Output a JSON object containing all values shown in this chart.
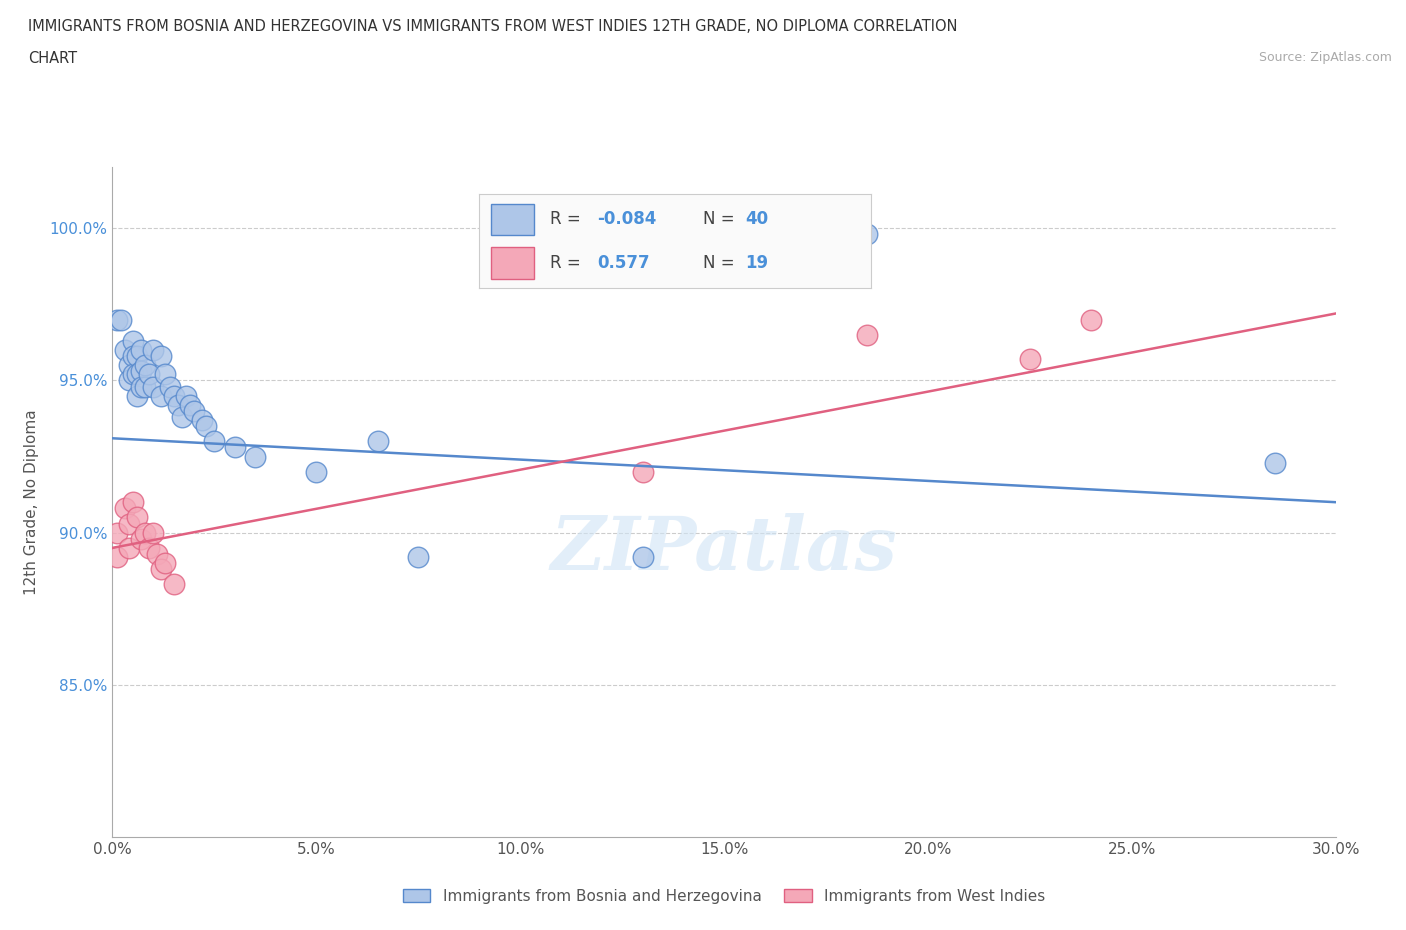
{
  "title_line1": "IMMIGRANTS FROM BOSNIA AND HERZEGOVINA VS IMMIGRANTS FROM WEST INDIES 12TH GRADE, NO DIPLOMA CORRELATION",
  "title_line2": "CHART",
  "source_text": "Source: ZipAtlas.com",
  "ylabel": "12th Grade, No Diploma",
  "xlim": [
    0.0,
    0.3
  ],
  "ylim": [
    0.8,
    1.02
  ],
  "xticklabels": [
    "0.0%",
    "5.0%",
    "10.0%",
    "15.0%",
    "20.0%",
    "25.0%",
    "30.0%"
  ],
  "xticks": [
    0.0,
    0.05,
    0.1,
    0.15,
    0.2,
    0.25,
    0.3
  ],
  "yticks": [
    0.85,
    0.9,
    0.95,
    1.0
  ],
  "yticklabels": [
    "85.0%",
    "90.0%",
    "95.0%",
    "100.0%"
  ],
  "color_blue": "#aec6e8",
  "color_pink": "#f4a8b8",
  "line_blue": "#5588cc",
  "line_pink": "#e06080",
  "R_blue": -0.084,
  "N_blue": 40,
  "R_pink": 0.577,
  "N_pink": 19,
  "legend_label_blue": "Immigrants from Bosnia and Herzegovina",
  "legend_label_pink": "Immigrants from West Indies",
  "watermark": "ZIPatlas",
  "blue_line_y0": 0.931,
  "blue_line_y1": 0.91,
  "pink_line_y0": 0.895,
  "pink_line_y1": 0.972,
  "blue_points": [
    [
      0.001,
      0.97
    ],
    [
      0.002,
      0.97
    ],
    [
      0.003,
      0.96
    ],
    [
      0.004,
      0.955
    ],
    [
      0.004,
      0.95
    ],
    [
      0.005,
      0.963
    ],
    [
      0.005,
      0.958
    ],
    [
      0.005,
      0.952
    ],
    [
      0.006,
      0.958
    ],
    [
      0.006,
      0.952
    ],
    [
      0.006,
      0.945
    ],
    [
      0.007,
      0.96
    ],
    [
      0.007,
      0.953
    ],
    [
      0.007,
      0.948
    ],
    [
      0.008,
      0.955
    ],
    [
      0.008,
      0.948
    ],
    [
      0.009,
      0.952
    ],
    [
      0.01,
      0.96
    ],
    [
      0.01,
      0.948
    ],
    [
      0.012,
      0.958
    ],
    [
      0.012,
      0.945
    ],
    [
      0.013,
      0.952
    ],
    [
      0.014,
      0.948
    ],
    [
      0.015,
      0.945
    ],
    [
      0.016,
      0.942
    ],
    [
      0.017,
      0.938
    ],
    [
      0.018,
      0.945
    ],
    [
      0.019,
      0.942
    ],
    [
      0.02,
      0.94
    ],
    [
      0.022,
      0.937
    ],
    [
      0.023,
      0.935
    ],
    [
      0.025,
      0.93
    ],
    [
      0.03,
      0.928
    ],
    [
      0.035,
      0.925
    ],
    [
      0.05,
      0.92
    ],
    [
      0.065,
      0.93
    ],
    [
      0.075,
      0.892
    ],
    [
      0.13,
      0.892
    ],
    [
      0.185,
      0.998
    ],
    [
      0.285,
      0.923
    ]
  ],
  "pink_points": [
    [
      0.001,
      0.9
    ],
    [
      0.001,
      0.892
    ],
    [
      0.003,
      0.908
    ],
    [
      0.004,
      0.903
    ],
    [
      0.004,
      0.895
    ],
    [
      0.005,
      0.91
    ],
    [
      0.006,
      0.905
    ],
    [
      0.007,
      0.898
    ],
    [
      0.008,
      0.9
    ],
    [
      0.009,
      0.895
    ],
    [
      0.01,
      0.9
    ],
    [
      0.011,
      0.893
    ],
    [
      0.012,
      0.888
    ],
    [
      0.013,
      0.89
    ],
    [
      0.015,
      0.883
    ],
    [
      0.13,
      0.92
    ],
    [
      0.185,
      0.965
    ],
    [
      0.225,
      0.957
    ],
    [
      0.24,
      0.97
    ]
  ]
}
